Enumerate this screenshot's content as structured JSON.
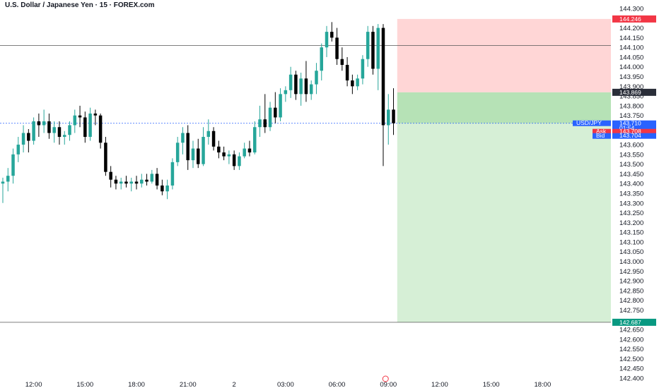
{
  "title": "U.S. Dollar / Japanese Yen · 15 · FOREX.com",
  "chart_data": {
    "type": "candlestick",
    "symbol": "USD/JPY",
    "interval": "15",
    "y_range": [
      142.4,
      144.3
    ],
    "y_ticks": [
      "144.300",
      "144.200",
      "144.150",
      "144.100",
      "144.050",
      "144.000",
      "143.950",
      "143.900",
      "143.850",
      "143.800",
      "143.750",
      "143.700",
      "143.650",
      "143.600",
      "143.550",
      "143.500",
      "143.450",
      "143.400",
      "143.350",
      "143.300",
      "143.250",
      "143.200",
      "143.150",
      "143.100",
      "143.050",
      "143.000",
      "142.950",
      "142.900",
      "142.850",
      "142.800",
      "142.750",
      "142.650",
      "142.600",
      "142.550",
      "142.500",
      "142.450",
      "142.400"
    ],
    "x_ticks": [
      {
        "index": 6,
        "label": "12:00"
      },
      {
        "index": 16,
        "label": "15:00"
      },
      {
        "index": 26,
        "label": "18:00"
      },
      {
        "index": 36,
        "label": "21:00"
      },
      {
        "index": 45,
        "label": "2"
      },
      {
        "index": 55,
        "label": "03:00"
      },
      {
        "index": 65,
        "label": "06:00"
      },
      {
        "index": 75,
        "label": "09:00"
      },
      {
        "index": 85,
        "label": "12:00"
      },
      {
        "index": 95,
        "label": "15:00"
      },
      {
        "index": 105,
        "label": "18:00"
      }
    ],
    "candles": [
      [
        143.4,
        143.43,
        143.3,
        143.41
      ],
      [
        143.41,
        143.48,
        143.36,
        143.44
      ],
      [
        143.44,
        143.58,
        143.4,
        143.55
      ],
      [
        143.55,
        143.64,
        143.51,
        143.6
      ],
      [
        143.6,
        143.7,
        143.56,
        143.66
      ],
      [
        143.66,
        143.68,
        143.56,
        143.62
      ],
      [
        143.62,
        143.74,
        143.6,
        143.72
      ],
      [
        143.72,
        143.76,
        143.64,
        143.7
      ],
      [
        143.7,
        143.78,
        143.66,
        143.72
      ],
      [
        143.72,
        143.76,
        143.63,
        143.66
      ],
      [
        143.66,
        143.72,
        143.61,
        143.69
      ],
      [
        143.69,
        143.72,
        143.6,
        143.64
      ],
      [
        143.64,
        143.67,
        143.6,
        143.65
      ],
      [
        143.65,
        143.72,
        143.62,
        143.7
      ],
      [
        143.7,
        143.78,
        143.66,
        143.75
      ],
      [
        143.75,
        143.8,
        143.69,
        143.74
      ],
      [
        143.74,
        143.77,
        143.61,
        143.64
      ],
      [
        143.64,
        143.79,
        143.62,
        143.76
      ],
      [
        143.76,
        143.78,
        143.7,
        143.75
      ],
      [
        143.75,
        143.76,
        143.58,
        143.61
      ],
      [
        143.61,
        143.64,
        143.44,
        143.46
      ],
      [
        143.46,
        143.49,
        143.38,
        143.42
      ],
      [
        143.42,
        143.44,
        143.37,
        143.4
      ],
      [
        143.4,
        143.43,
        143.37,
        143.41
      ],
      [
        143.41,
        143.44,
        143.38,
        143.4
      ],
      [
        143.4,
        143.43,
        143.36,
        143.41
      ],
      [
        143.41,
        143.44,
        143.37,
        143.4
      ],
      [
        143.4,
        143.45,
        143.38,
        143.42
      ],
      [
        143.42,
        143.45,
        143.39,
        143.41
      ],
      [
        143.41,
        143.47,
        143.4,
        143.45
      ],
      [
        143.45,
        143.48,
        143.37,
        143.39
      ],
      [
        143.39,
        143.42,
        143.34,
        143.36
      ],
      [
        143.36,
        143.42,
        143.32,
        143.39
      ],
      [
        143.39,
        143.53,
        143.37,
        143.51
      ],
      [
        143.51,
        143.64,
        143.49,
        143.61
      ],
      [
        143.61,
        143.69,
        143.55,
        143.66
      ],
      [
        143.66,
        143.7,
        143.47,
        143.52
      ],
      [
        143.52,
        143.62,
        143.48,
        143.58
      ],
      [
        143.58,
        143.63,
        143.48,
        143.5
      ],
      [
        143.5,
        143.69,
        143.49,
        143.64
      ],
      [
        143.64,
        143.73,
        143.6,
        143.67
      ],
      [
        143.67,
        143.69,
        143.57,
        143.59
      ],
      [
        143.59,
        143.62,
        143.53,
        143.56
      ],
      [
        143.56,
        143.59,
        143.52,
        143.54
      ],
      [
        143.54,
        143.57,
        143.5,
        143.55
      ],
      [
        143.55,
        143.57,
        143.47,
        143.49
      ],
      [
        143.49,
        143.56,
        143.47,
        143.54
      ],
      [
        143.54,
        143.61,
        143.53,
        143.58
      ],
      [
        143.58,
        143.62,
        143.54,
        143.56
      ],
      [
        143.56,
        143.72,
        143.55,
        143.69
      ],
      [
        143.69,
        143.8,
        143.64,
        143.73
      ],
      [
        143.73,
        143.86,
        143.66,
        143.69
      ],
      [
        143.69,
        143.82,
        143.67,
        143.79
      ],
      [
        143.79,
        143.87,
        143.71,
        143.74
      ],
      [
        143.74,
        143.89,
        143.72,
        143.86
      ],
      [
        143.86,
        143.9,
        143.82,
        143.88
      ],
      [
        143.88,
        144.0,
        143.84,
        143.96
      ],
      [
        143.96,
        143.98,
        143.83,
        143.86
      ],
      [
        143.86,
        143.97,
        143.8,
        143.94
      ],
      [
        143.94,
        144.03,
        143.82,
        143.86
      ],
      [
        143.86,
        143.93,
        143.83,
        143.91
      ],
      [
        143.91,
        144.02,
        143.86,
        143.98
      ],
      [
        143.98,
        144.12,
        143.93,
        144.1
      ],
      [
        144.1,
        144.21,
        144.05,
        144.18
      ],
      [
        144.18,
        144.23,
        144.13,
        144.15
      ],
      [
        144.15,
        144.2,
        144.01,
        144.04
      ],
      [
        144.04,
        144.1,
        143.98,
        144.01
      ],
      [
        144.01,
        144.05,
        143.9,
        143.93
      ],
      [
        143.93,
        143.96,
        143.86,
        143.9
      ],
      [
        143.9,
        143.96,
        143.88,
        143.94
      ],
      [
        143.94,
        144.06,
        143.91,
        144.04
      ],
      [
        144.04,
        144.21,
        144.0,
        144.18
      ],
      [
        144.18,
        144.21,
        143.96,
        143.99
      ],
      [
        143.99,
        144.22,
        143.88,
        144.2
      ],
      [
        144.2,
        144.22,
        143.49,
        143.7
      ],
      [
        143.7,
        143.86,
        143.6,
        143.78
      ],
      [
        143.78,
        143.89,
        143.65,
        143.71
      ]
    ],
    "levels": {
      "stop_loss": "144.246",
      "entry": "143.869",
      "take_profit": "142.687",
      "horizontal_line": 144.11,
      "current_price": "143.710",
      "countdown": "01:54",
      "ask": "143.708",
      "bid": "143.704"
    },
    "labels": {
      "symbol_tag": "USD/JPY",
      "ask_tag": "Ask",
      "bid_tag": "Bid"
    },
    "position_tool": {
      "type": "short",
      "start_index": 77,
      "end_index": 118
    },
    "colors": {
      "up": "#26a69a",
      "down": "#000000",
      "stop_fill": "#ffd6d6",
      "target_fill": "#d6efd6",
      "entry_fill": "#b6e2b6",
      "stop_tag": "#f23645",
      "entry_tag": "#2a2e39",
      "target_tag": "#089981",
      "price_tag": "#2962ff",
      "ask_tag": "#f23645",
      "bid_tag": "#2962ff"
    }
  }
}
